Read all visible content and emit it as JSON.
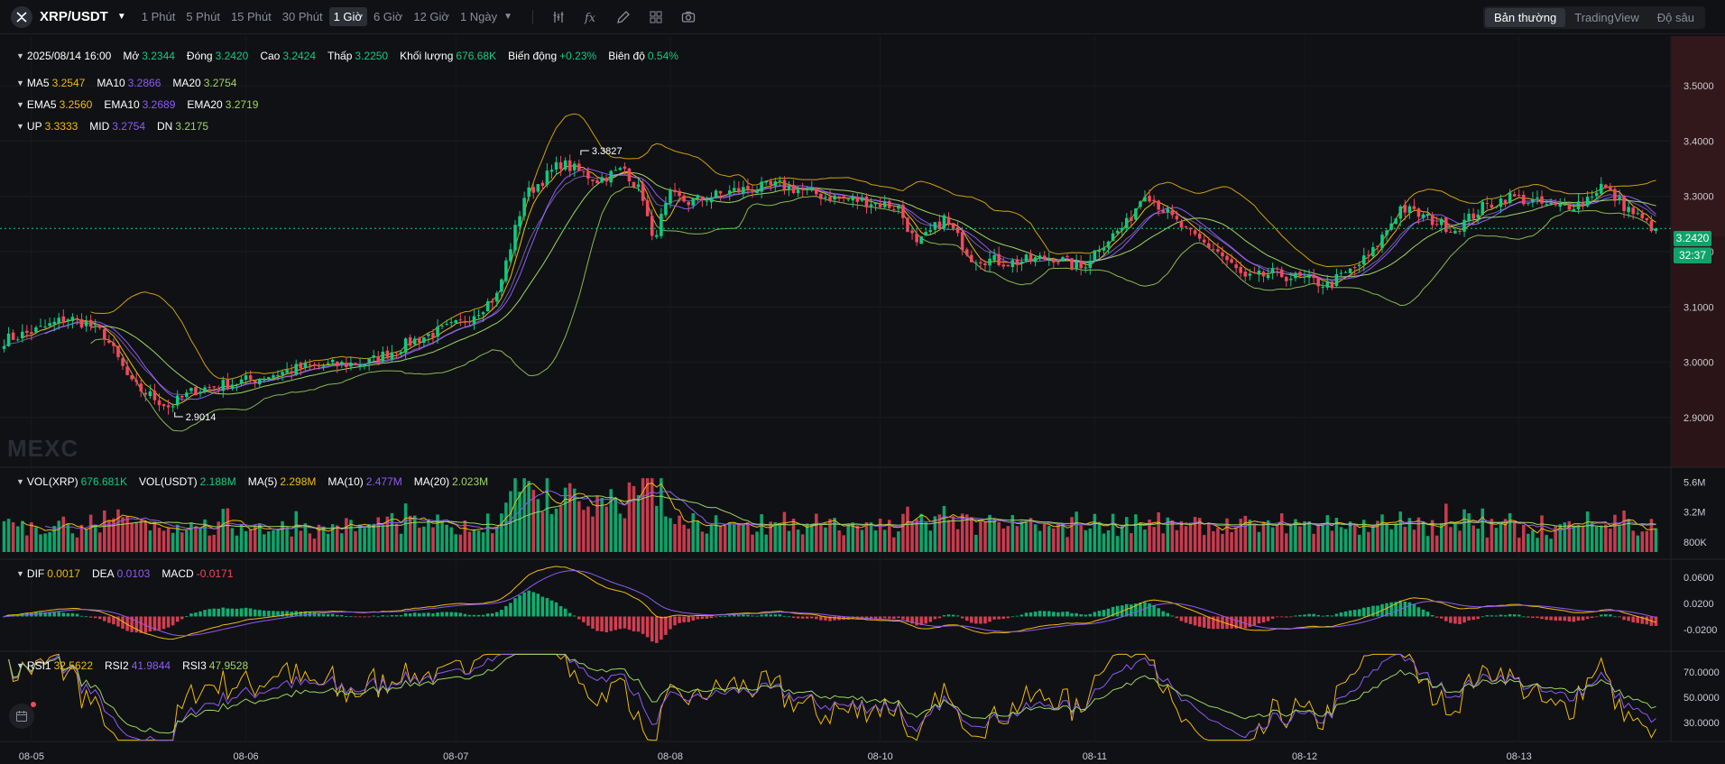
{
  "header": {
    "pair": "XRP/USDT",
    "timeframes": [
      "1 Phút",
      "5 Phút",
      "15 Phút",
      "30 Phút",
      "1 Giờ",
      "6 Giờ",
      "12 Giờ",
      "1 Ngày"
    ],
    "active_timeframe": "1 Giờ",
    "views": [
      "Bản thường",
      "TradingView",
      "Độ sâu"
    ],
    "active_view": "Bản thường",
    "icons": [
      "indicator-icon",
      "formula-icon",
      "draw-icon",
      "layout-icon",
      "camera-icon"
    ]
  },
  "ohlc": {
    "date": "2025/08/14 16:00",
    "open_label": "Mở",
    "open": "3.2344",
    "close_label": "Đóng",
    "close": "3.2420",
    "high_label": "Cao",
    "high": "3.2424",
    "low_label": "Thấp",
    "low": "3.2250",
    "volume_label": "Khối lượng",
    "volume": "676.68K",
    "change_label": "Biến động",
    "change": "+0.23%",
    "amplitude_label": "Biên độ",
    "amplitude": "0.54%"
  },
  "ma": {
    "ma5_label": "MA5",
    "ma5": "3.2547",
    "ma10_label": "MA10",
    "ma10": "3.2866",
    "ma20_label": "MA20",
    "ma20": "3.2754"
  },
  "ema": {
    "ema5_label": "EMA5",
    "ema5": "3.2560",
    "ema10_label": "EMA10",
    "ema10": "3.2689",
    "ema20_label": "EMA20",
    "ema20": "3.2719"
  },
  "boll": {
    "up_label": "UP",
    "up": "3.3333",
    "mid_label": "MID",
    "mid": "3.2754",
    "dn_label": "DN",
    "dn": "3.2175"
  },
  "vol": {
    "xrp_label": "VOL(XRP)",
    "xrp": "676.681K",
    "usdt_label": "VOL(USDT)",
    "usdt": "2.188M",
    "ma5_label": "MA(5)",
    "ma5": "2.298M",
    "ma10_label": "MA(10)",
    "ma10": "2.477M",
    "ma20_label": "MA(20)",
    "ma20": "2.023M"
  },
  "macd": {
    "dif_label": "DIF",
    "dif": "0.0017",
    "dea_label": "DEA",
    "dea": "0.0103",
    "macd_label": "MACD",
    "macd": "-0.0171"
  },
  "rsi": {
    "rsi1_label": "RSI1",
    "rsi1": "32.5622",
    "rsi2_label": "RSI2",
    "rsi2": "41.9844",
    "rsi3_label": "RSI3",
    "rsi3": "47.9528"
  },
  "current_price": "3.2420",
  "countdown": "32:37",
  "watermark": "MEXC",
  "colors": {
    "up": "#0ecb81",
    "down": "#f6465d",
    "ma5": "#f0b90b",
    "ma10": "#8e5bf5",
    "ma20": "#9bd65f",
    "bg": "#101114"
  },
  "chart_data": [
    {
      "type": "candlestick",
      "x_ticks": [
        "08-05",
        "08-06",
        "08-07",
        "08-08",
        "08-10",
        "08-11",
        "08-12",
        "08-13"
      ],
      "y_ticks": [
        2.9,
        3.0,
        3.1,
        3.2,
        3.3,
        3.4,
        3.5
      ],
      "y_tick_labels": [
        "2.9000",
        "3.0000",
        "3.1000",
        "3.2000",
        "3.3000",
        "3.4000",
        "3.5000"
      ],
      "ylim": [
        2.81,
        3.59
      ],
      "annotations": [
        {
          "text": "3.3827",
          "value": 3.3827
        },
        {
          "text": "2.9014",
          "value": 2.9014
        }
      ],
      "close_anchors": [
        [
          0,
          3.04
        ],
        [
          8,
          3.06
        ],
        [
          14,
          3.08
        ],
        [
          18,
          3.07
        ],
        [
          22,
          3.05
        ],
        [
          28,
          2.96
        ],
        [
          36,
          2.92
        ],
        [
          42,
          2.95
        ],
        [
          55,
          2.97
        ],
        [
          65,
          2.99
        ],
        [
          80,
          3.0
        ],
        [
          90,
          3.04
        ],
        [
          100,
          3.07
        ],
        [
          108,
          3.12
        ],
        [
          114,
          3.3
        ],
        [
          122,
          3.36
        ],
        [
          130,
          3.33
        ],
        [
          136,
          3.35
        ],
        [
          140,
          3.3
        ],
        [
          142,
          3.22
        ],
        [
          146,
          3.3
        ],
        [
          150,
          3.29
        ],
        [
          160,
          3.31
        ],
        [
          170,
          3.32
        ],
        [
          180,
          3.3
        ],
        [
          190,
          3.29
        ],
        [
          196,
          3.28
        ],
        [
          200,
          3.21
        ],
        [
          206,
          3.26
        ],
        [
          212,
          3.19
        ],
        [
          220,
          3.18
        ],
        [
          230,
          3.19
        ],
        [
          236,
          3.17
        ],
        [
          240,
          3.21
        ],
        [
          246,
          3.25
        ],
        [
          250,
          3.31
        ],
        [
          256,
          3.26
        ],
        [
          260,
          3.23
        ],
        [
          266,
          3.2
        ],
        [
          272,
          3.15
        ],
        [
          278,
          3.16
        ],
        [
          285,
          3.15
        ],
        [
          290,
          3.14
        ],
        [
          296,
          3.17
        ],
        [
          300,
          3.2
        ],
        [
          306,
          3.28
        ],
        [
          312,
          3.26
        ],
        [
          318,
          3.24
        ],
        [
          324,
          3.28
        ],
        [
          330,
          3.3
        ],
        [
          340,
          3.28
        ],
        [
          346,
          3.29
        ],
        [
          350,
          3.32
        ],
        [
          354,
          3.29
        ],
        [
          360,
          3.25
        ],
        [
          362,
          3.242
        ]
      ]
    },
    {
      "type": "bar",
      "name": "volume",
      "y_tick_labels": [
        "5.6M",
        "3.2M",
        "800K"
      ],
      "ylim": [
        0,
        6.2
      ]
    },
    {
      "type": "bar",
      "name": "macd",
      "y_tick_labels": [
        "0.0600",
        "0.0200",
        "-0.0200"
      ],
      "y_ticks": [
        0.06,
        0.02,
        -0.02
      ],
      "ylim": [
        -0.045,
        0.085
      ]
    },
    {
      "type": "line",
      "name": "rsi",
      "y_tick_labels": [
        "70.0000",
        "50.0000",
        "30.0000"
      ],
      "y_ticks": [
        70,
        50,
        30
      ],
      "ylim": [
        15,
        85
      ]
    }
  ]
}
